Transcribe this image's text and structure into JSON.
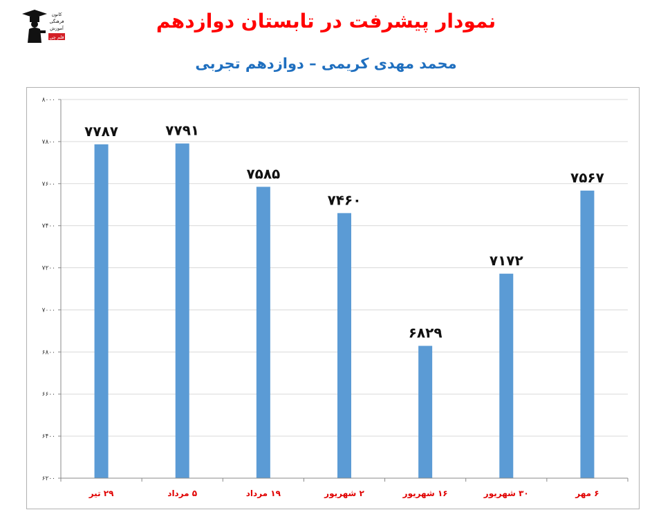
{
  "header": {
    "title": "نمودار پیشرفت در تابستان دوازدهم",
    "subtitle": "محمد مهدی کریمی – دوازدهم تجربی"
  },
  "logo": {
    "icon": "graduate-logo-icon",
    "text_lines": [
      "کانون",
      "فرهنگی",
      "آموزش",
      "قلم چی"
    ]
  },
  "colors": {
    "title": "#ff0000",
    "subtitle": "#1f6fbf",
    "bar": "#5b9bd5",
    "category_label": "#e00000",
    "grid": "#d9d9d9"
  },
  "chart_data": {
    "type": "bar",
    "categories": [
      "۲۹ تیر",
      "۵ مرداد",
      "۱۹ مرداد",
      "۲ شهریور",
      "۱۶ شهریور",
      "۳۰ شهریور",
      "۶ مهر"
    ],
    "values": [
      7787,
      7791,
      7585,
      7460,
      6829,
      7172,
      7567
    ],
    "value_labels": [
      "۷۷۸۷",
      "۷۷۹۱",
      "۷۵۸۵",
      "۷۴۶۰",
      "۶۸۲۹",
      "۷۱۷۲",
      "۷۵۶۷"
    ],
    "ylim": [
      6200,
      8000
    ],
    "yticks": [
      6200,
      6400,
      6600,
      6800,
      7000,
      7200,
      7400,
      7600,
      7800,
      8000
    ],
    "ytick_labels": [
      "۶۲۰۰",
      "۶۴۰۰",
      "۶۶۰۰",
      "۶۸۰۰",
      "۷۰۰۰",
      "۷۲۰۰",
      "۷۴۰۰",
      "۷۶۰۰",
      "۷۸۰۰",
      "۸۰۰۰"
    ],
    "grid": true,
    "legend": "none"
  }
}
